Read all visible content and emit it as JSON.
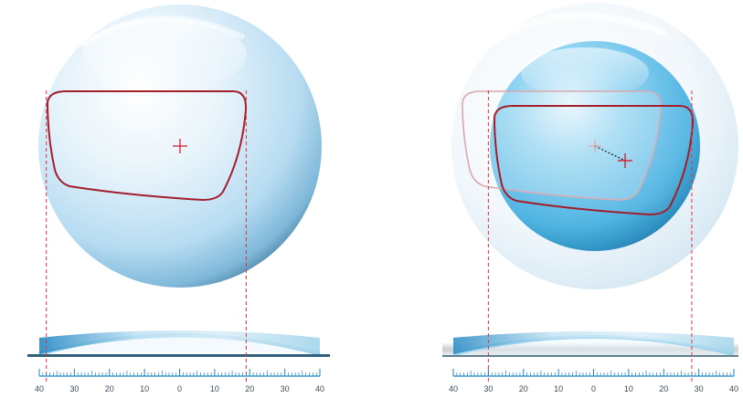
{
  "scale": {
    "tick_labels": [
      "40",
      "30",
      "20",
      "10",
      "0",
      "10",
      "20",
      "30",
      "40"
    ],
    "tick_values": [
      -40,
      -30,
      -20,
      -10,
      0,
      10,
      20,
      30,
      40
    ],
    "range": [
      -40,
      40
    ],
    "minor_step": 1
  },
  "panels": [
    {
      "id": "single-vision-lens",
      "frame_color": "#a31d2b",
      "marker_color": "#d3212e",
      "guide_color": "#e0313c",
      "lens_color": "#c7e4f7",
      "measured_edges": [
        -38,
        19
      ]
    },
    {
      "id": "decentered-lens",
      "frame_color": "#a31d2b",
      "ghost_frame_color": "#d9a7ae",
      "marker_color": "#d3212e",
      "guide_color": "#e0313c",
      "lens_color": "#5fbfe8",
      "blank_color": "#e3eff7",
      "decentration_line_color": "#1a1a1a",
      "measured_edges": [
        -30,
        28
      ]
    }
  ]
}
